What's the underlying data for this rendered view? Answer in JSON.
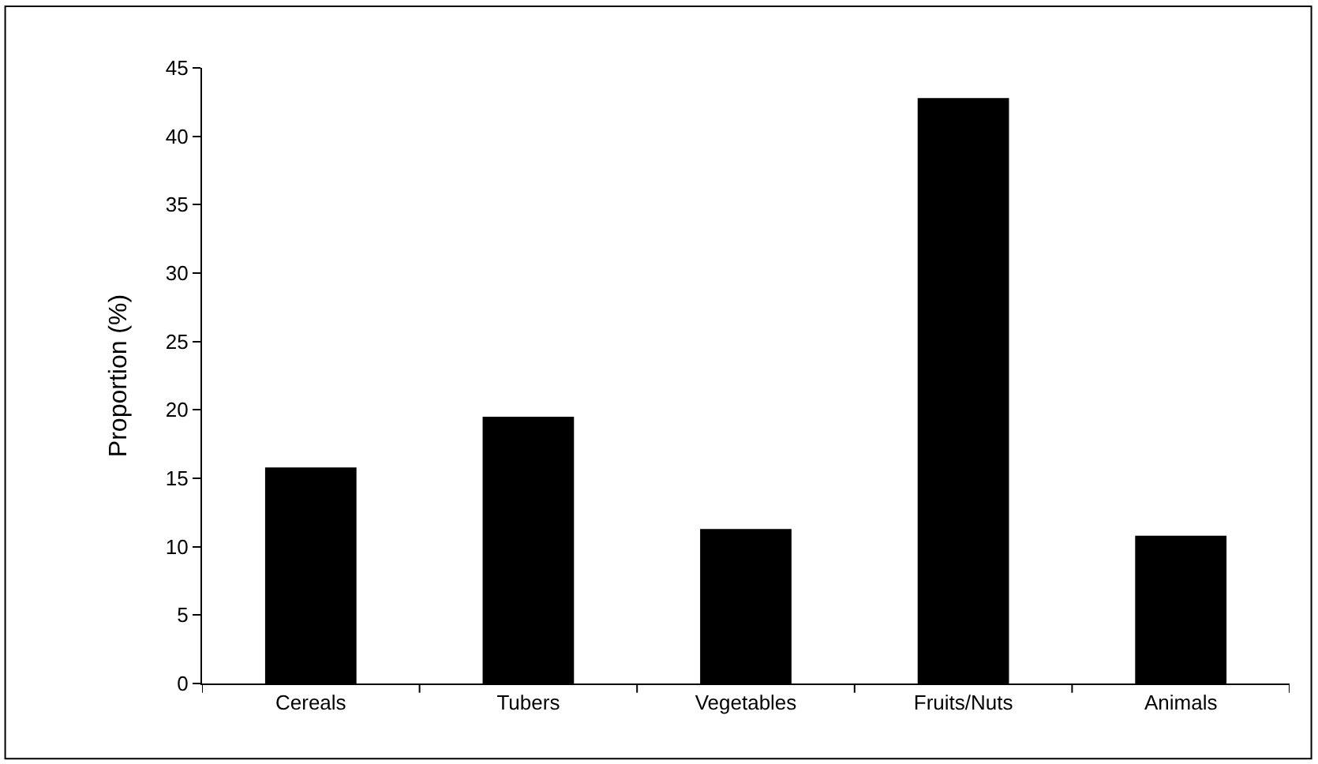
{
  "chart_data": {
    "type": "bar",
    "ylabel": "Proportion (%)",
    "categories": [
      "Cereals",
      "Tubers",
      "Vegetables",
      "Fruits/Nuts",
      "Animals"
    ],
    "values": [
      15.8,
      19.5,
      11.3,
      42.8,
      10.8
    ],
    "color": "#000000",
    "ylim": [
      0,
      45
    ],
    "yticks": [
      0,
      5,
      10,
      15,
      20,
      25,
      30,
      35,
      40,
      45
    ]
  }
}
